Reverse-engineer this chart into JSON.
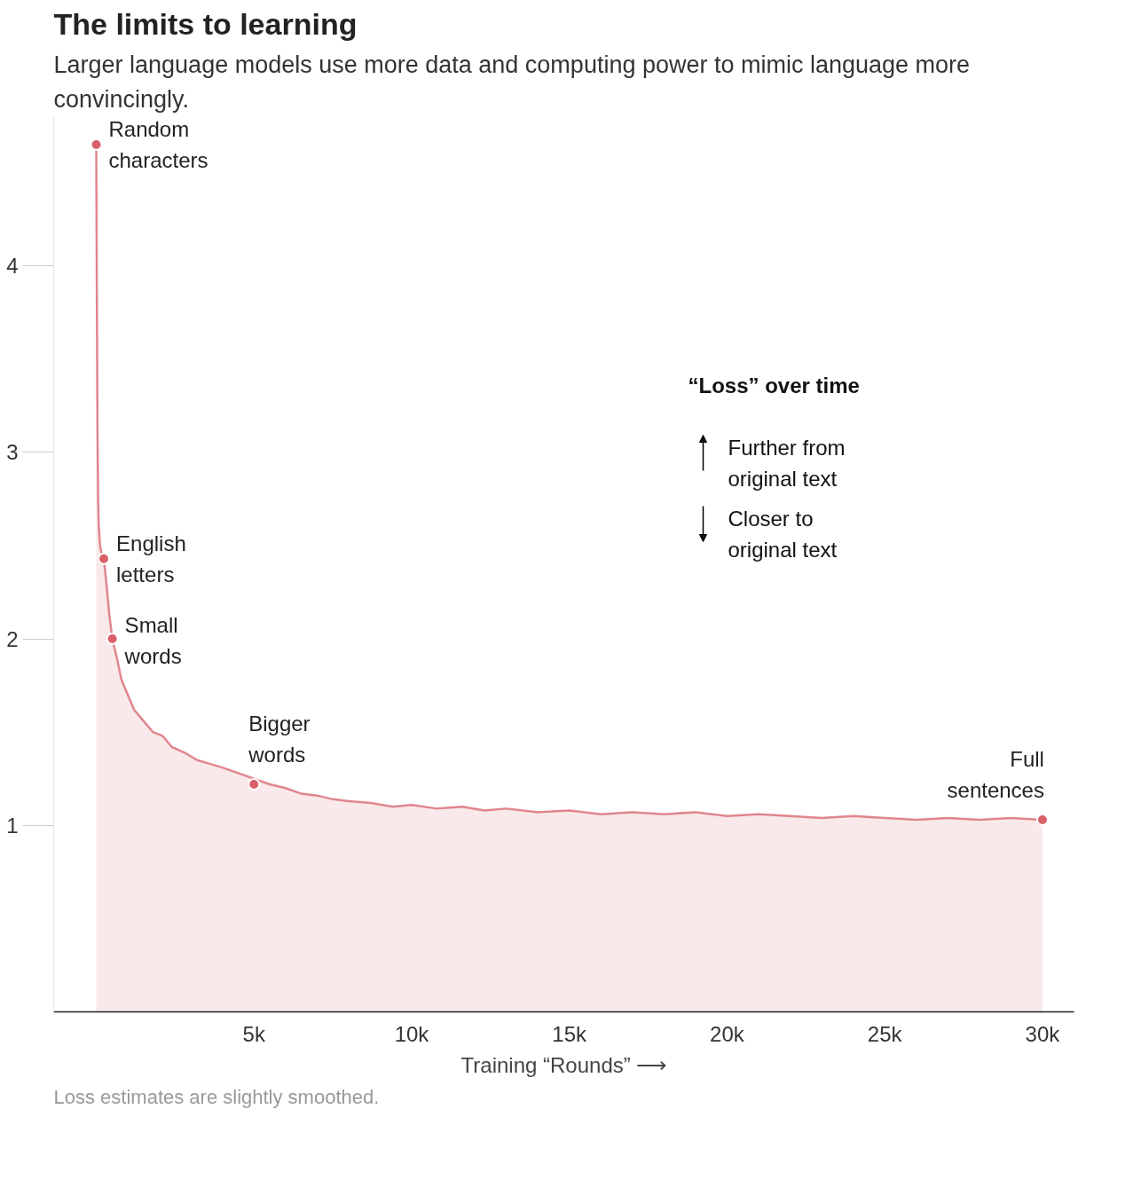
{
  "chart_data": {
    "type": "area",
    "title": "The limits to learning",
    "subtitle": "Larger language models use more data and computing power to mimic language more convincingly.",
    "xlabel": "Training “Rounds” ⟶",
    "xlim": [
      -1350,
      31000
    ],
    "ylim": [
      0,
      4.8
    ],
    "xticks": [
      {
        "value": 5000,
        "label": "5k"
      },
      {
        "value": 10000,
        "label": "10k"
      },
      {
        "value": 15000,
        "label": "15k"
      },
      {
        "value": 20000,
        "label": "20k"
      },
      {
        "value": 25000,
        "label": "25k"
      },
      {
        "value": 30000,
        "label": "30k"
      }
    ],
    "yticks": [
      1,
      2,
      3,
      4
    ],
    "grid": false,
    "marker": "none",
    "line_style": "solid",
    "x": [
      0,
      20,
      40,
      60,
      80,
      120,
      180,
      240,
      320,
      420,
      510,
      650,
      800,
      1000,
      1200,
      1500,
      1800,
      2100,
      2400,
      2800,
      3200,
      3600,
      4000,
      4500,
      5000,
      5500,
      6000,
      6500,
      7000,
      7500,
      8000,
      8700,
      9400,
      10000,
      10800,
      11600,
      12300,
      13000,
      14000,
      15000,
      16000,
      17000,
      18000,
      19000,
      20000,
      21000,
      22000,
      23000,
      24000,
      25000,
      26000,
      27000,
      28000,
      29000,
      30000
    ],
    "series": [
      {
        "color": "#e0868e",
        "values": [
          4.65,
          3.8,
          3.1,
          2.75,
          2.6,
          2.5,
          2.45,
          2.43,
          2.3,
          2.12,
          2.0,
          1.9,
          1.78,
          1.7,
          1.62,
          1.56,
          1.5,
          1.48,
          1.42,
          1.39,
          1.35,
          1.33,
          1.31,
          1.28,
          1.25,
          1.22,
          1.2,
          1.17,
          1.16,
          1.14,
          1.13,
          1.12,
          1.1,
          1.11,
          1.09,
          1.1,
          1.08,
          1.09,
          1.07,
          1.08,
          1.06,
          1.07,
          1.06,
          1.07,
          1.05,
          1.06,
          1.05,
          1.04,
          1.05,
          1.04,
          1.03,
          1.04,
          1.03,
          1.04,
          1.03
        ]
      }
    ],
    "annotations": [
      {
        "text": "Random\ncharacters",
        "x": 0,
        "y": 4.65
      },
      {
        "text": "English\nletters",
        "x": 240,
        "y": 2.43
      },
      {
        "text": "Small\nwords",
        "x": 510,
        "y": 2.0
      },
      {
        "text": "Bigger\nwords",
        "x": 5000,
        "y": 1.22
      },
      {
        "text": "Full\nsentences",
        "x": 30000,
        "y": 1.03
      },
      "“Loss” over time",
      "Further from\noriginal text",
      "Closer to\noriginal text",
      "Loss estimates are slightly smoothed."
    ]
  }
}
